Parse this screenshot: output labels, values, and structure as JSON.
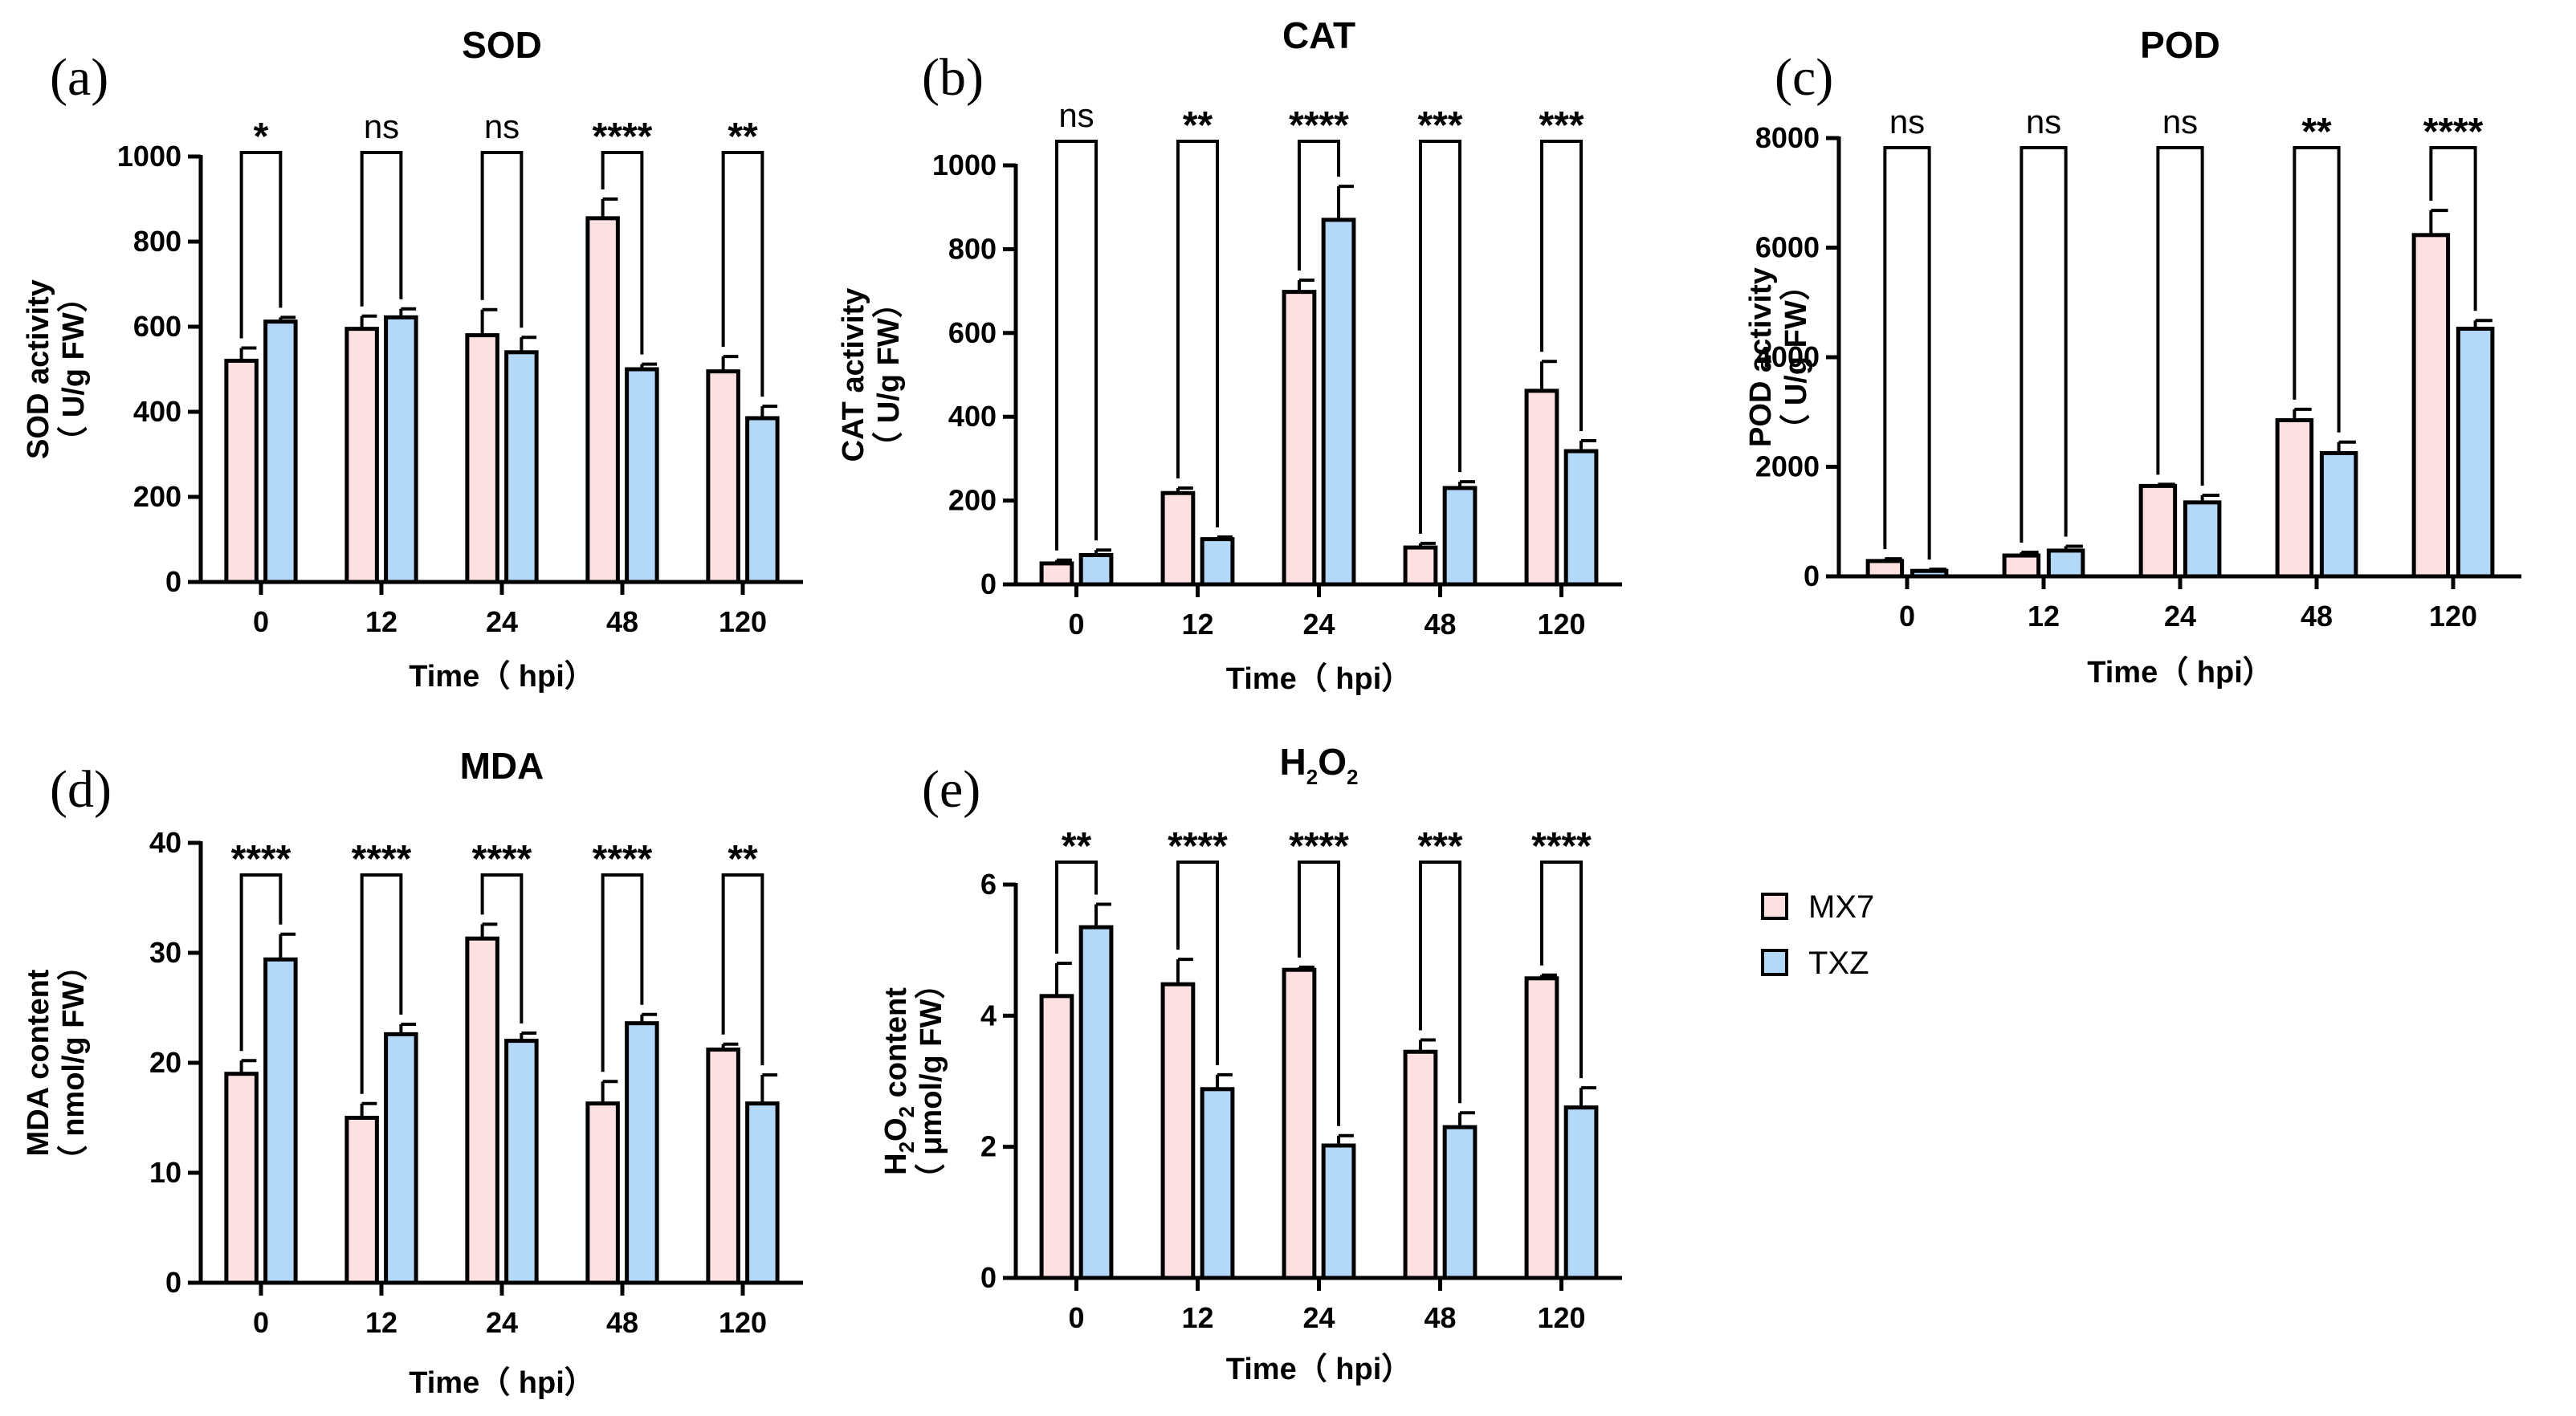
{
  "legend": [
    {
      "name": "MX7",
      "color": "#fde0e2"
    },
    {
      "name": "TXZ",
      "color": "#b4d8f8"
    }
  ],
  "chart_data": [
    {
      "type": "bar",
      "panel": "(a)",
      "title": "SOD",
      "title_sub": "",
      "xlabel": "Time（ hpi）",
      "ylabel_top": "SOD activity",
      "ylabel_bottom": "（ U/g FW）",
      "ylim": [
        0,
        1000
      ],
      "yticks": [
        0,
        200,
        400,
        600,
        800,
        1000
      ],
      "categories": [
        "0",
        "12",
        "24",
        "48",
        "120"
      ],
      "series": [
        {
          "name": "MX7",
          "values": [
            520,
            595,
            580,
            855,
            495
          ],
          "errors": [
            30,
            30,
            60,
            45,
            35
          ]
        },
        {
          "name": "TXZ",
          "values": [
            612,
            622,
            540,
            500,
            385
          ],
          "errors": [
            10,
            20,
            35,
            12,
            28
          ]
        }
      ],
      "significance": [
        "*",
        "ns",
        "ns",
        "****",
        "**"
      ]
    },
    {
      "type": "bar",
      "panel": "(b)",
      "title": "CAT",
      "title_sub": "",
      "xlabel": "Time（ hpi）",
      "ylabel_top": "CAT activity",
      "ylabel_bottom": "（ U/g FW）",
      "ylim": [
        0,
        1000
      ],
      "yticks": [
        0,
        200,
        400,
        600,
        800,
        1000
      ],
      "categories": [
        "0",
        "12",
        "24",
        "48",
        "120"
      ],
      "series": [
        {
          "name": "MX7",
          "values": [
            50,
            218,
            698,
            88,
            462
          ],
          "errors": [
            8,
            12,
            28,
            10,
            70
          ]
        },
        {
          "name": "TXZ",
          "values": [
            70,
            108,
            870,
            230,
            318
          ],
          "errors": [
            12,
            5,
            80,
            15,
            25
          ]
        }
      ],
      "significance": [
        "ns",
        "**",
        "****",
        "***",
        "***"
      ]
    },
    {
      "type": "bar",
      "panel": "(c)",
      "title": "POD",
      "title_sub": "",
      "xlabel": "Time（ hpi）",
      "ylabel_top": "POD activity",
      "ylabel_bottom": "（ U/g FW）",
      "ylim": [
        0,
        8000
      ],
      "yticks": [
        0,
        2000,
        4000,
        6000,
        8000
      ],
      "categories": [
        "0",
        "12",
        "24",
        "48",
        "120"
      ],
      "series": [
        {
          "name": "MX7",
          "values": [
            280,
            380,
            1650,
            2850,
            6230
          ],
          "errors": [
            40,
            60,
            30,
            200,
            450
          ]
        },
        {
          "name": "TXZ",
          "values": [
            100,
            470,
            1350,
            2250,
            4520
          ],
          "errors": [
            30,
            80,
            130,
            200,
            150
          ]
        }
      ],
      "significance": [
        "ns",
        "ns",
        "ns",
        "**",
        "****"
      ]
    },
    {
      "type": "bar",
      "panel": "(d)",
      "title": "MDA",
      "title_sub": "",
      "xlabel": "Time（ hpi）",
      "ylabel_top": "MDA content",
      "ylabel_bottom": "（ nmol/g FW）",
      "ylim": [
        0,
        40
      ],
      "yticks": [
        0,
        10,
        20,
        30,
        40
      ],
      "categories": [
        "0",
        "12",
        "24",
        "48",
        "120"
      ],
      "series": [
        {
          "name": "MX7",
          "values": [
            19.0,
            15.0,
            31.3,
            16.3,
            21.2
          ],
          "errors": [
            1.2,
            1.3,
            1.3,
            2.0,
            0.5
          ]
        },
        {
          "name": "TXZ",
          "values": [
            29.4,
            22.6,
            22.0,
            23.6,
            16.3
          ],
          "errors": [
            2.3,
            0.9,
            0.7,
            0.8,
            2.6
          ]
        }
      ],
      "significance": [
        "****",
        "****",
        "****",
        "****",
        "**"
      ]
    },
    {
      "type": "bar",
      "panel": "(e)",
      "title": "H",
      "title_sub": "2",
      "title_mid": "O",
      "title_sub2": "2",
      "xlabel": "Time（ hpi）",
      "ylabel_top": "H",
      "ylabel_top_sub": "2",
      "ylabel_top_mid": "O",
      "ylabel_top_sub2": "2",
      "ylabel_top_rest": " content",
      "ylabel_bottom": "（ μmol/g FW）",
      "ylim": [
        0,
        6
      ],
      "yticks": [
        0,
        2,
        4,
        6
      ],
      "categories": [
        "0",
        "12",
        "24",
        "48",
        "120"
      ],
      "series": [
        {
          "name": "MX7",
          "values": [
            4.3,
            4.48,
            4.7,
            3.45,
            4.57
          ],
          "errors": [
            0.5,
            0.38,
            0.04,
            0.18,
            0.05
          ]
        },
        {
          "name": "TXZ",
          "values": [
            5.35,
            2.88,
            2.02,
            2.3,
            2.6
          ],
          "errors": [
            0.35,
            0.22,
            0.15,
            0.22,
            0.3
          ]
        }
      ],
      "significance": [
        "**",
        "****",
        "****",
        "***",
        "****"
      ]
    }
  ]
}
